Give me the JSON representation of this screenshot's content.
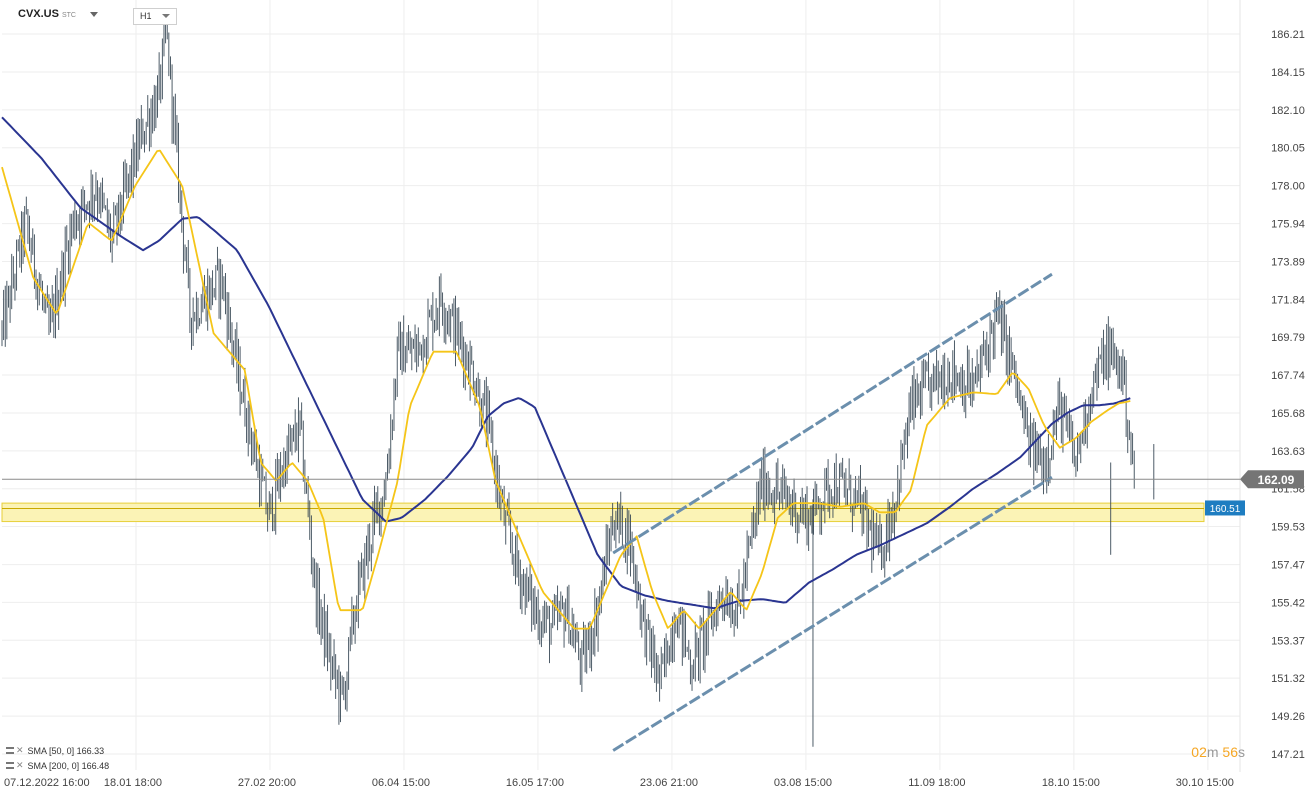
{
  "header": {
    "symbol": "CVX.US",
    "symbol_suffix": "STC",
    "timeframe": "H1"
  },
  "legend": [
    {
      "label": "SMA [50, 0]",
      "value": "166.33"
    },
    {
      "label": "SMA [200, 0]",
      "value": "166.48"
    }
  ],
  "countdown": {
    "minutes": "02",
    "minutes_unit": "m",
    "seconds": "56",
    "seconds_unit": "s"
  },
  "colors": {
    "candles": "#3a4a57",
    "sma50": "#f5c518",
    "sma200": "#2a3591",
    "channel": "#6b8fad",
    "zone_fill": "#fbf3b6",
    "zone_border": "#e7cf3a",
    "current_price_badge": "#757575",
    "zone_badge": "#1e7dc1",
    "countdown": "#f5a623"
  },
  "chart_data": {
    "type": "candlestick",
    "title": "",
    "x_ticks": [
      "07.12.2022  16:00",
      "18.01  18:00",
      "27.02  20:00",
      "06.04  15:00",
      "16.05  17:00",
      "23.06  21:00",
      "03.08  15:00",
      "11.09  18:00",
      "18.10  15:00",
      "30.10  15:00"
    ],
    "y_ticks": [
      "186.21",
      "184.15",
      "182.10",
      "180.05",
      "178.00",
      "175.94",
      "173.89",
      "171.84",
      "169.79",
      "167.74",
      "165.68",
      "163.63",
      "161.58",
      "159.53",
      "157.47",
      "155.42",
      "153.37",
      "151.32",
      "149.26",
      "147.21"
    ],
    "ylim": [
      147.21,
      186.21
    ],
    "current_price": 162.09,
    "current_price_label": "162.09",
    "zone": {
      "low": 159.8,
      "high": 160.8,
      "label": "160.51"
    },
    "price_path": [
      [
        0,
        170
      ],
      [
        3,
        176
      ],
      [
        6,
        170
      ],
      [
        9,
        176
      ],
      [
        12,
        178
      ],
      [
        14,
        175
      ],
      [
        16,
        178
      ],
      [
        18,
        181
      ],
      [
        20,
        183
      ],
      [
        21,
        186.2
      ],
      [
        22,
        181
      ],
      [
        24,
        171
      ],
      [
        26,
        172
      ],
      [
        28,
        173
      ],
      [
        30,
        168
      ],
      [
        32,
        164
      ],
      [
        34,
        160
      ],
      [
        36,
        163
      ],
      [
        38,
        165
      ],
      [
        40,
        156
      ],
      [
        42,
        152
      ],
      [
        43.5,
        150
      ],
      [
        45,
        155
      ],
      [
        47,
        159
      ],
      [
        49,
        162
      ],
      [
        50.5,
        169
      ],
      [
        53,
        169
      ],
      [
        56,
        172
      ],
      [
        58,
        170
      ],
      [
        60,
        168
      ],
      [
        62,
        165
      ],
      [
        64,
        160
      ],
      [
        66,
        157
      ],
      [
        68,
        155
      ],
      [
        70,
        154
      ],
      [
        72,
        155
      ],
      [
        74,
        152
      ],
      [
        76,
        155
      ],
      [
        78,
        160
      ],
      [
        80,
        159
      ],
      [
        82,
        154
      ],
      [
        84,
        151
      ],
      [
        86,
        155
      ],
      [
        88,
        152
      ],
      [
        90,
        154
      ],
      [
        92,
        156
      ],
      [
        94,
        155
      ],
      [
        97,
        162
      ],
      [
        100,
        161
      ],
      [
        103,
        160
      ],
      [
        106,
        162
      ],
      [
        109,
        161
      ],
      [
        112,
        158
      ],
      [
        114,
        161
      ],
      [
        116,
        166
      ],
      [
        118,
        167
      ],
      [
        121,
        168
      ],
      [
        124,
        167
      ],
      [
        127,
        171
      ],
      [
        129,
        168
      ],
      [
        131,
        164
      ],
      [
        133,
        163
      ],
      [
        135,
        166
      ],
      [
        137,
        163
      ],
      [
        139,
        167
      ],
      [
        141,
        169
      ],
      [
        143,
        168
      ],
      [
        144.5,
        162
      ]
    ],
    "series": [
      {
        "name": "SMA [50, 0]",
        "points": [
          [
            0,
            179
          ],
          [
            4,
            173
          ],
          [
            7,
            171
          ],
          [
            11,
            176
          ],
          [
            14,
            175
          ],
          [
            17,
            178
          ],
          [
            20,
            180
          ],
          [
            23,
            178
          ],
          [
            25,
            174
          ],
          [
            27,
            170
          ],
          [
            29,
            169
          ],
          [
            31,
            168
          ],
          [
            33,
            163
          ],
          [
            35,
            162
          ],
          [
            37,
            163
          ],
          [
            39,
            162
          ],
          [
            41,
            160
          ],
          [
            43,
            155
          ],
          [
            46,
            155
          ],
          [
            48,
            158
          ],
          [
            50.5,
            162
          ],
          [
            52,
            166
          ],
          [
            55,
            169
          ],
          [
            58,
            169
          ],
          [
            61,
            166
          ],
          [
            63,
            162
          ],
          [
            65,
            160
          ],
          [
            67,
            158
          ],
          [
            69,
            156
          ],
          [
            71,
            155
          ],
          [
            73,
            154
          ],
          [
            75,
            154
          ],
          [
            77,
            156
          ],
          [
            79,
            158
          ],
          [
            81,
            159
          ],
          [
            83,
            156
          ],
          [
            85,
            154
          ],
          [
            87,
            155
          ],
          [
            89,
            154
          ],
          [
            91,
            155
          ],
          [
            93,
            156
          ],
          [
            95,
            155
          ],
          [
            97,
            157
          ],
          [
            99,
            160
          ],
          [
            101,
            160.8
          ],
          [
            104,
            160.8
          ],
          [
            107,
            160.6
          ],
          [
            110,
            160.8
          ],
          [
            112,
            160.3
          ],
          [
            114,
            160.3
          ],
          [
            116,
            161.5
          ],
          [
            118,
            165
          ],
          [
            121,
            166.5
          ],
          [
            124,
            166.8
          ],
          [
            127,
            166.7
          ],
          [
            129,
            167.9
          ],
          [
            131,
            167
          ],
          [
            133,
            165
          ],
          [
            135,
            163.8
          ],
          [
            137,
            164.3
          ],
          [
            139,
            165.2
          ],
          [
            141,
            165.8
          ],
          [
            142.5,
            166.2
          ],
          [
            144,
            166.33
          ]
        ]
      },
      {
        "name": "SMA [200, 0]",
        "points": [
          [
            0,
            181.7
          ],
          [
            5,
            179.5
          ],
          [
            10,
            176.8
          ],
          [
            15,
            175.3
          ],
          [
            18,
            174.5
          ],
          [
            20,
            175
          ],
          [
            23,
            176.2
          ],
          [
            25,
            176.3
          ],
          [
            27,
            175.6
          ],
          [
            30,
            174.5
          ],
          [
            34,
            171.5
          ],
          [
            38,
            168
          ],
          [
            42,
            164.5
          ],
          [
            46,
            161
          ],
          [
            49,
            159.8
          ],
          [
            51,
            160
          ],
          [
            54,
            161
          ],
          [
            57,
            162.3
          ],
          [
            60,
            163.8
          ],
          [
            62,
            165.5
          ],
          [
            64,
            166.2
          ],
          [
            66,
            166.5
          ],
          [
            68,
            166
          ],
          [
            70,
            164
          ],
          [
            73,
            161
          ],
          [
            76,
            158
          ],
          [
            79,
            156.3
          ],
          [
            82,
            155.8
          ],
          [
            85,
            155.5
          ],
          [
            88,
            155.3
          ],
          [
            91,
            155.1
          ],
          [
            94,
            155.5
          ],
          [
            97,
            155.6
          ],
          [
            100,
            155.4
          ],
          [
            103,
            156.5
          ],
          [
            106,
            157.2
          ],
          [
            109,
            158
          ],
          [
            112,
            158.5
          ],
          [
            115,
            159.1
          ],
          [
            118,
            159.7
          ],
          [
            121,
            160.6
          ],
          [
            124,
            161.6
          ],
          [
            127,
            162.4
          ],
          [
            130,
            163.3
          ],
          [
            132,
            164.2
          ],
          [
            134,
            165.1
          ],
          [
            136,
            165.7
          ],
          [
            138,
            166.1
          ],
          [
            140,
            166.1
          ],
          [
            142,
            166.2
          ],
          [
            144,
            166.48
          ]
        ]
      }
    ],
    "channel": {
      "upper": [
        [
          78,
          158.1
        ],
        [
          134,
          173.2
        ]
      ],
      "lower": [
        [
          78,
          147.4
        ],
        [
          134,
          162.2
        ]
      ]
    }
  }
}
